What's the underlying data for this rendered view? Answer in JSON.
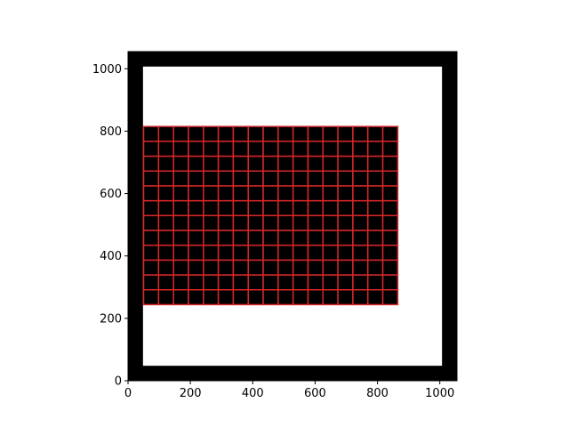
{
  "chart_data": {
    "type": "heatmap",
    "title": "",
    "xlabel": "",
    "ylabel": "",
    "xlim": [
      0,
      1055
    ],
    "ylim": [
      0,
      1055
    ],
    "grid": false,
    "x_ticks": [
      0,
      200,
      400,
      600,
      800,
      1000
    ],
    "y_ticks": [
      0,
      200,
      400,
      600,
      800,
      1000
    ],
    "x_tick_labels": [
      "0",
      "200",
      "400",
      "600",
      "800",
      "1000"
    ],
    "y_tick_labels": [
      "0",
      "200",
      "400",
      "600",
      "800",
      "1000"
    ],
    "image": {
      "background_color": "#000000",
      "inner_region": {
        "x": [
          48,
          1007
        ],
        "y": [
          48,
          1007
        ],
        "color": "#ffffff"
      }
    },
    "grid_block": {
      "x_range": [
        50,
        865
      ],
      "y_range": [
        244,
        815
      ],
      "columns": 17,
      "rows": 12,
      "fill_color": "#000000",
      "line_color": "#d62728"
    }
  }
}
